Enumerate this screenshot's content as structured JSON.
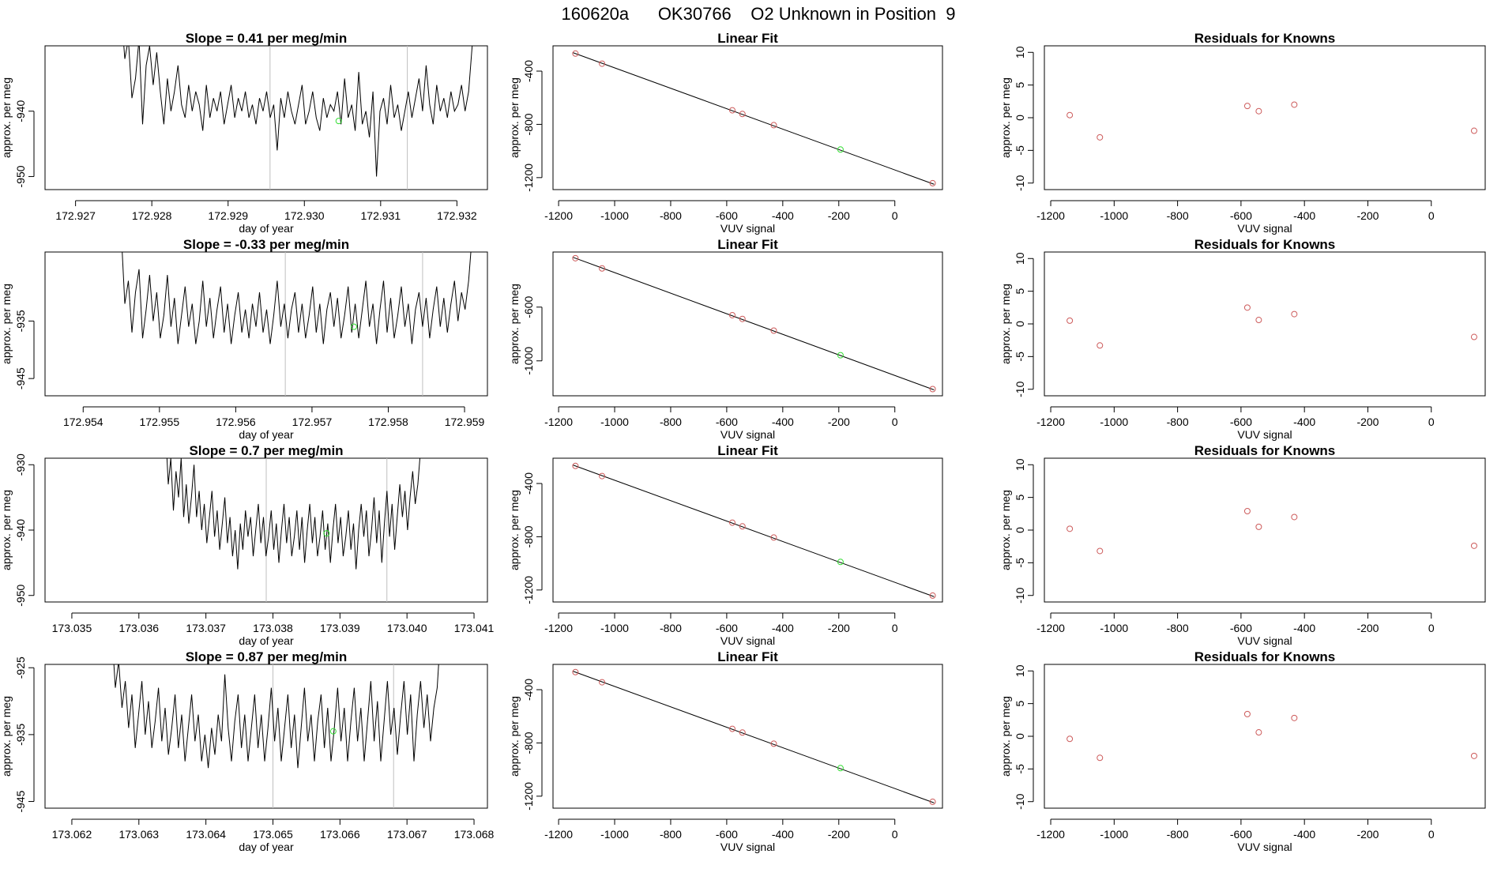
{
  "figure_title": "160620a      OK30766    O2 Unknown in Position  9",
  "colors": {
    "known": "#cd5c5c",
    "unknown": "#33dd33",
    "line": "#000000",
    "guide": "#bfbfbf"
  },
  "chart_data": [
    {
      "row": 1,
      "timeseries": {
        "type": "line",
        "title": "Slope =  0.41  per meg/min",
        "xlabel": "day of year",
        "ylabel": "approx. per meg",
        "xlim": [
          172.9266,
          172.9324
        ],
        "ylim": [
          -952,
          -930
        ],
        "xticks": [
          "172.927",
          "172.928",
          "172.929",
          "172.930",
          "172.931",
          "172.932"
        ],
        "yticks": [
          "-950",
          "-940"
        ],
        "vlines": [
          172.92955,
          172.93135
        ],
        "unknown_point": [
          172.93045,
          -941.5
        ],
        "x_range": [
          172.9276,
          172.9322
        ],
        "y": [
          -925,
          -932,
          -929,
          -938,
          -935,
          -929,
          -942,
          -933,
          -930,
          -936,
          -931,
          -937,
          -942,
          -935,
          -940,
          -937,
          -933,
          -939,
          -941,
          -936,
          -940,
          -937,
          -939,
          -943,
          -936,
          -941,
          -938,
          -940,
          -937,
          -942,
          -939,
          -936,
          -941,
          -938,
          -940,
          -937,
          -941,
          -939,
          -942,
          -938,
          -940,
          -937,
          -941,
          -939,
          -946,
          -938,
          -941,
          -937,
          -940,
          -942,
          -939,
          -936,
          -942,
          -940,
          -937,
          -941,
          -943,
          -938,
          -941,
          -939,
          -940,
          -937,
          -942,
          -935,
          -941,
          -939,
          -943,
          -934,
          -942,
          -940,
          -944,
          -937,
          -950,
          -940,
          -938,
          -942,
          -936,
          -941,
          -939,
          -943,
          -940,
          -937,
          -941,
          -938,
          -935,
          -940,
          -933,
          -939,
          -942,
          -936,
          -940,
          -938,
          -941,
          -937,
          -940,
          -939,
          -936,
          -940,
          -937,
          -930
        ]
      },
      "fit": {
        "type": "scatter",
        "title": "Linear Fit",
        "xlabel": "VUV signal",
        "ylabel": "approx. per meg",
        "xlim": [
          -1220,
          170
        ],
        "ylim": [
          -1290,
          -210
        ],
        "xticks": [
          "-1200",
          "-1000",
          "-800",
          "-600",
          "-400",
          "-200",
          "0"
        ],
        "yticks": [
          "-1200",
          "-800",
          "-400"
        ],
        "line": [
          [
            -1148,
            -262
          ],
          [
            140,
            -1250
          ]
        ],
        "known_points": [
          [
            -1140,
            -268
          ],
          [
            -1045,
            -344
          ],
          [
            -580,
            -694
          ],
          [
            -544,
            -722
          ],
          [
            -432,
            -806
          ],
          [
            135,
            -1242
          ]
        ],
        "unknown_point": [
          -194,
          -989
        ]
      },
      "residuals": {
        "type": "scatter",
        "title": "Residuals for Knowns",
        "xlabel": "VUV signal",
        "ylabel": "approx. per meg",
        "xlim": [
          -1220,
          170
        ],
        "ylim": [
          -11,
          11
        ],
        "xticks": [
          "-1200",
          "-1000",
          "-800",
          "-600",
          "-400",
          "-200",
          "0"
        ],
        "yticks": [
          "-10",
          "-5",
          "0",
          "5",
          "10"
        ],
        "points": [
          [
            -1140,
            0.4
          ],
          [
            -1045,
            -3.0
          ],
          [
            -580,
            1.8
          ],
          [
            -544,
            1.0
          ],
          [
            -432,
            2.0
          ],
          [
            135,
            -2.0
          ]
        ]
      }
    },
    {
      "row": 2,
      "timeseries": {
        "type": "line",
        "title": "Slope =  -0.33  per meg/min",
        "xlabel": "day of year",
        "ylabel": "approx. per meg",
        "xlim": [
          172.9535,
          172.9593
        ],
        "ylim": [
          -948,
          -923
        ],
        "xticks": [
          "172.954",
          "172.955",
          "172.956",
          "172.957",
          "172.958",
          "172.959"
        ],
        "yticks": [
          "-945",
          "-935"
        ],
        "vlines": [
          172.95665,
          172.95845
        ],
        "unknown_point": [
          172.95755,
          -936
        ],
        "x_range": [
          172.9545,
          172.9591
        ],
        "y": [
          -920,
          -932,
          -928,
          -937,
          -930,
          -926,
          -938,
          -933,
          -927,
          -935,
          -930,
          -938,
          -934,
          -927,
          -936,
          -931,
          -939,
          -934,
          -929,
          -936,
          -932,
          -939,
          -935,
          -928,
          -936,
          -931,
          -938,
          -933,
          -929,
          -937,
          -932,
          -939,
          -934,
          -930,
          -937,
          -933,
          -938,
          -932,
          -936,
          -930,
          -937,
          -933,
          -939,
          -934,
          -928,
          -936,
          -932,
          -938,
          -933,
          -930,
          -937,
          -932,
          -938,
          -934,
          -929,
          -937,
          -932,
          -939,
          -933,
          -930,
          -936,
          -931,
          -938,
          -934,
          -929,
          -937,
          -932,
          -938,
          -933,
          -928,
          -936,
          -932,
          -939,
          -933,
          -928,
          -937,
          -931,
          -938,
          -934,
          -929,
          -936,
          -932,
          -939,
          -933,
          -930,
          -936,
          -931,
          -938,
          -933,
          -929,
          -936,
          -931,
          -937,
          -932,
          -928,
          -935,
          -930,
          -933,
          -928,
          -920
        ]
      },
      "fit": {
        "type": "scatter",
        "title": "Linear Fit",
        "xlabel": "VUV signal",
        "ylabel": "approx. per meg",
        "xlim": [
          -1220,
          170
        ],
        "ylim": [
          -1260,
          -190
        ],
        "xticks": [
          "-1200",
          "-1000",
          "-800",
          "-600",
          "-400",
          "-200",
          "0"
        ],
        "yticks": [
          "-1000",
          "-600"
        ],
        "line": [
          [
            -1148,
            -230
          ],
          [
            140,
            -1216
          ]
        ],
        "known_points": [
          [
            -1140,
            -236
          ],
          [
            -1045,
            -312
          ],
          [
            -580,
            -660
          ],
          [
            -544,
            -688
          ],
          [
            -432,
            -775
          ],
          [
            135,
            -1210
          ]
        ],
        "unknown_point": [
          -194,
          -958
        ]
      },
      "residuals": {
        "type": "scatter",
        "title": "Residuals for Knowns",
        "xlabel": "VUV signal",
        "ylabel": "approx. per meg",
        "xlim": [
          -1220,
          170
        ],
        "ylim": [
          -11,
          11
        ],
        "xticks": [
          "-1200",
          "-1000",
          "-800",
          "-600",
          "-400",
          "-200",
          "0"
        ],
        "yticks": [
          "-10",
          "-5",
          "0",
          "5",
          "10"
        ],
        "points": [
          [
            -1140,
            0.5
          ],
          [
            -1045,
            -3.3
          ],
          [
            -580,
            2.5
          ],
          [
            -544,
            0.6
          ],
          [
            -432,
            1.5
          ],
          [
            135,
            -2.0
          ]
        ]
      }
    },
    {
      "row": 3,
      "timeseries": {
        "type": "line",
        "title": "Slope =  0.7  per meg/min",
        "xlabel": "day of year",
        "ylabel": "approx. per meg",
        "xlim": [
          173.0346,
          173.0412
        ],
        "ylim": [
          -951,
          -929
        ],
        "xticks": [
          "173.035",
          "173.036",
          "173.037",
          "173.038",
          "173.039",
          "173.040",
          "173.041"
        ],
        "yticks": [
          "-950",
          "-940",
          "-930"
        ],
        "vlines": [
          173.0379,
          173.0397
        ],
        "unknown_point": [
          173.0388,
          -940.5
        ],
        "x_range": [
          173.0364,
          173.0402
        ],
        "y": [
          -925,
          -933,
          -929,
          -937,
          -931,
          -935,
          -929,
          -938,
          -933,
          -939,
          -935,
          -930,
          -938,
          -934,
          -940,
          -936,
          -942,
          -938,
          -934,
          -941,
          -937,
          -943,
          -939,
          -935,
          -942,
          -938,
          -944,
          -940,
          -946,
          -939,
          -943,
          -937,
          -941,
          -938,
          -944,
          -940,
          -936,
          -942,
          -938,
          -944,
          -941,
          -937,
          -943,
          -939,
          -945,
          -940,
          -936,
          -942,
          -938,
          -944,
          -941,
          -937,
          -943,
          -938,
          -945,
          -940,
          -936,
          -942,
          -938,
          -944,
          -941,
          -937,
          -943,
          -939,
          -945,
          -940,
          -936,
          -942,
          -938,
          -944,
          -941,
          -937,
          -943,
          -939,
          -946,
          -940,
          -936,
          -941,
          -937,
          -944,
          -940,
          -935,
          -942,
          -937,
          -945,
          -939,
          -934,
          -941,
          -936,
          -943,
          -938,
          -933,
          -938,
          -934,
          -940,
          -935,
          -931,
          -936,
          -933,
          -928
        ]
      },
      "fit": {
        "type": "scatter",
        "title": "Linear Fit",
        "xlabel": "VUV signal",
        "ylabel": "approx. per meg",
        "xlim": [
          -1220,
          170
        ],
        "ylim": [
          -1290,
          -210
        ],
        "xticks": [
          "-1200",
          "-1000",
          "-800",
          "-600",
          "-400",
          "-200",
          "0"
        ],
        "yticks": [
          "-1200",
          "-800",
          "-400"
        ],
        "line": [
          [
            -1148,
            -262
          ],
          [
            140,
            -1250
          ]
        ],
        "known_points": [
          [
            -1140,
            -268
          ],
          [
            -1045,
            -344
          ],
          [
            -580,
            -694
          ],
          [
            -544,
            -722
          ],
          [
            -432,
            -806
          ],
          [
            135,
            -1242
          ]
        ],
        "unknown_point": [
          -194,
          -989
        ]
      },
      "residuals": {
        "type": "scatter",
        "title": "Residuals for Knowns",
        "xlabel": "VUV signal",
        "ylabel": "approx. per meg",
        "xlim": [
          -1220,
          170
        ],
        "ylim": [
          -11,
          11
        ],
        "xticks": [
          "-1200",
          "-1000",
          "-800",
          "-600",
          "-400",
          "-200",
          "0"
        ],
        "yticks": [
          "-10",
          "-5",
          "0",
          "5",
          "10"
        ],
        "points": [
          [
            -1140,
            0.2
          ],
          [
            -1045,
            -3.2
          ],
          [
            -580,
            2.9
          ],
          [
            -544,
            0.5
          ],
          [
            -432,
            2.0
          ],
          [
            135,
            -2.4
          ]
        ]
      }
    },
    {
      "row": 4,
      "timeseries": {
        "type": "line",
        "title": "Slope =  0.87  per meg/min",
        "xlabel": "day of year",
        "ylabel": "approx. per meg",
        "xlim": [
          173.0616,
          173.0682
        ],
        "ylim": [
          -946,
          -924.5
        ],
        "xticks": [
          "173.062",
          "173.063",
          "173.064",
          "173.065",
          "173.066",
          "173.067",
          "173.068"
        ],
        "yticks": [
          "-945",
          "-935",
          "-925"
        ],
        "vlines": [
          173.065,
          173.0668
        ],
        "unknown_point": [
          173.0659,
          -934.5
        ],
        "x_range": [
          173.0626,
          173.0675
        ],
        "y": [
          -920,
          -928,
          -924,
          -931,
          -927,
          -934,
          -929,
          -937,
          -932,
          -927,
          -935,
          -930,
          -937,
          -933,
          -928,
          -936,
          -931,
          -938,
          -934,
          -929,
          -937,
          -932,
          -939,
          -934,
          -929,
          -936,
          -932,
          -939,
          -935,
          -940,
          -934,
          -938,
          -932,
          -936,
          -926,
          -934,
          -939,
          -933,
          -929,
          -937,
          -932,
          -939,
          -934,
          -929,
          -937,
          -932,
          -939,
          -934,
          -928,
          -936,
          -931,
          -939,
          -934,
          -929,
          -937,
          -932,
          -940,
          -934,
          -928,
          -936,
          -932,
          -939,
          -933,
          -929,
          -937,
          -931,
          -939,
          -934,
          -928,
          -936,
          -931,
          -939,
          -933,
          -928,
          -936,
          -931,
          -939,
          -933,
          -927,
          -936,
          -930,
          -939,
          -933,
          -927,
          -935,
          -931,
          -938,
          -932,
          -927,
          -935,
          -929,
          -939,
          -932,
          -927,
          -934,
          -929,
          -936,
          -931,
          -928,
          -920
        ]
      },
      "fit": {
        "type": "scatter",
        "title": "Linear Fit",
        "xlabel": "VUV signal",
        "ylabel": "approx. per meg",
        "xlim": [
          -1220,
          170
        ],
        "ylim": [
          -1290,
          -210
        ],
        "xticks": [
          "-1200",
          "-1000",
          "-800",
          "-600",
          "-400",
          "-200",
          "0"
        ],
        "yticks": [
          "-1200",
          "-800",
          "-400"
        ],
        "line": [
          [
            -1148,
            -262
          ],
          [
            140,
            -1250
          ]
        ],
        "known_points": [
          [
            -1140,
            -268
          ],
          [
            -1045,
            -344
          ],
          [
            -580,
            -694
          ],
          [
            -544,
            -722
          ],
          [
            -432,
            -806
          ],
          [
            135,
            -1242
          ]
        ],
        "unknown_point": [
          -194,
          -989
        ]
      },
      "residuals": {
        "type": "scatter",
        "title": "Residuals for Knowns",
        "xlabel": "VUV signal",
        "ylabel": "approx. per meg",
        "xlim": [
          -1220,
          170
        ],
        "ylim": [
          -11,
          11
        ],
        "xticks": [
          "-1200",
          "-1000",
          "-800",
          "-600",
          "-400",
          "-200",
          "0"
        ],
        "yticks": [
          "-10",
          "-5",
          "0",
          "5",
          "10"
        ],
        "points": [
          [
            -1140,
            -0.4
          ],
          [
            -1045,
            -3.3
          ],
          [
            -580,
            3.4
          ],
          [
            -544,
            0.6
          ],
          [
            -432,
            2.8
          ],
          [
            135,
            -3.0
          ]
        ]
      }
    }
  ]
}
